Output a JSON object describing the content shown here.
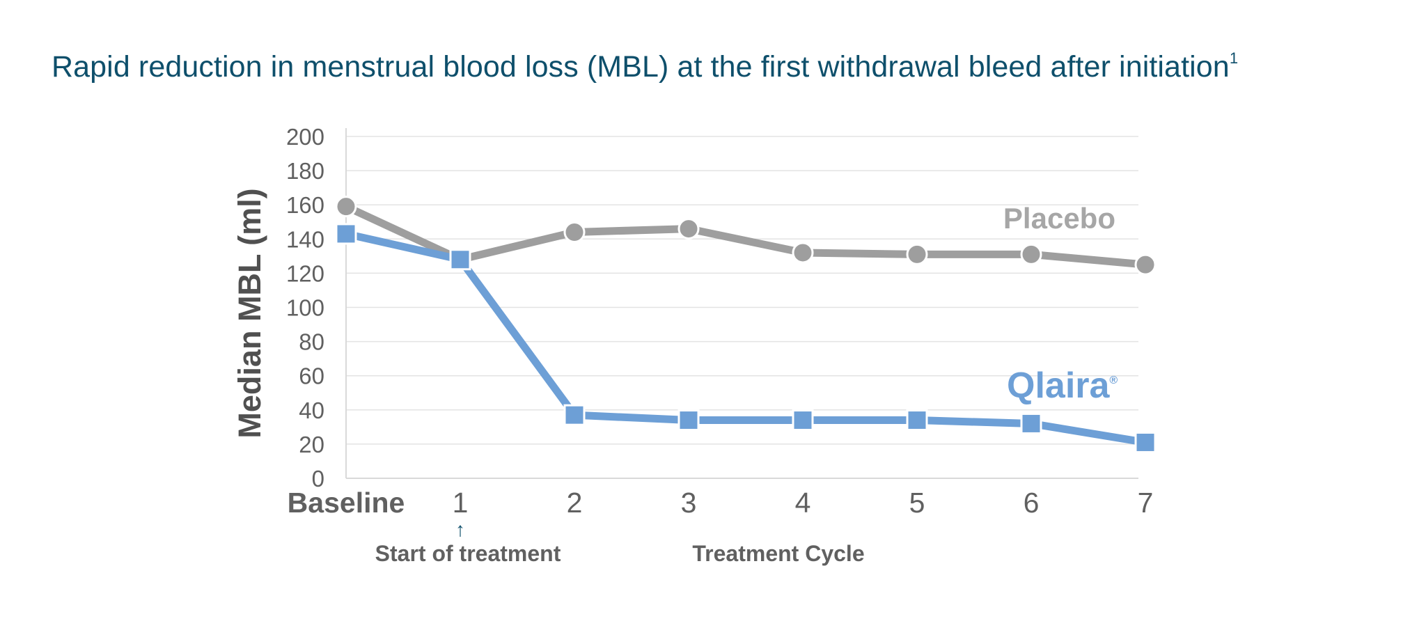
{
  "title": "Rapid reduction in menstrual blood loss (MBL) at the first withdrawal bleed after initiation",
  "title_superscript": "1",
  "chart_data": {
    "type": "line",
    "title": "Rapid reduction in menstrual blood loss (MBL) at the first withdrawal bleed after initiation",
    "ylabel": "Median MBL (ml)",
    "xlabel": "Treatment Cycle",
    "ylim": [
      0,
      200
    ],
    "yticks": [
      "200",
      "180",
      "160",
      "140",
      "120",
      "100",
      "80",
      "60",
      "40",
      "20",
      "0"
    ],
    "categories": [
      "Baseline",
      "1",
      "2",
      "3",
      "4",
      "5",
      "6",
      "7"
    ],
    "grid": true,
    "annotation": {
      "arrow": "↑",
      "text": "Start of treatment",
      "at": "1"
    },
    "series": [
      {
        "name": "Placebo",
        "label": "Placebo",
        "color": "#9e9e9e",
        "marker": "circle",
        "values": [
          159,
          128,
          144,
          146,
          132,
          131,
          131,
          125
        ]
      },
      {
        "name": "Qlaira",
        "label": "Qlaira",
        "label_mark": "®",
        "color": "#6d9fd6",
        "marker": "square",
        "values": [
          143,
          128,
          37,
          34,
          34,
          34,
          32,
          21
        ]
      }
    ]
  }
}
